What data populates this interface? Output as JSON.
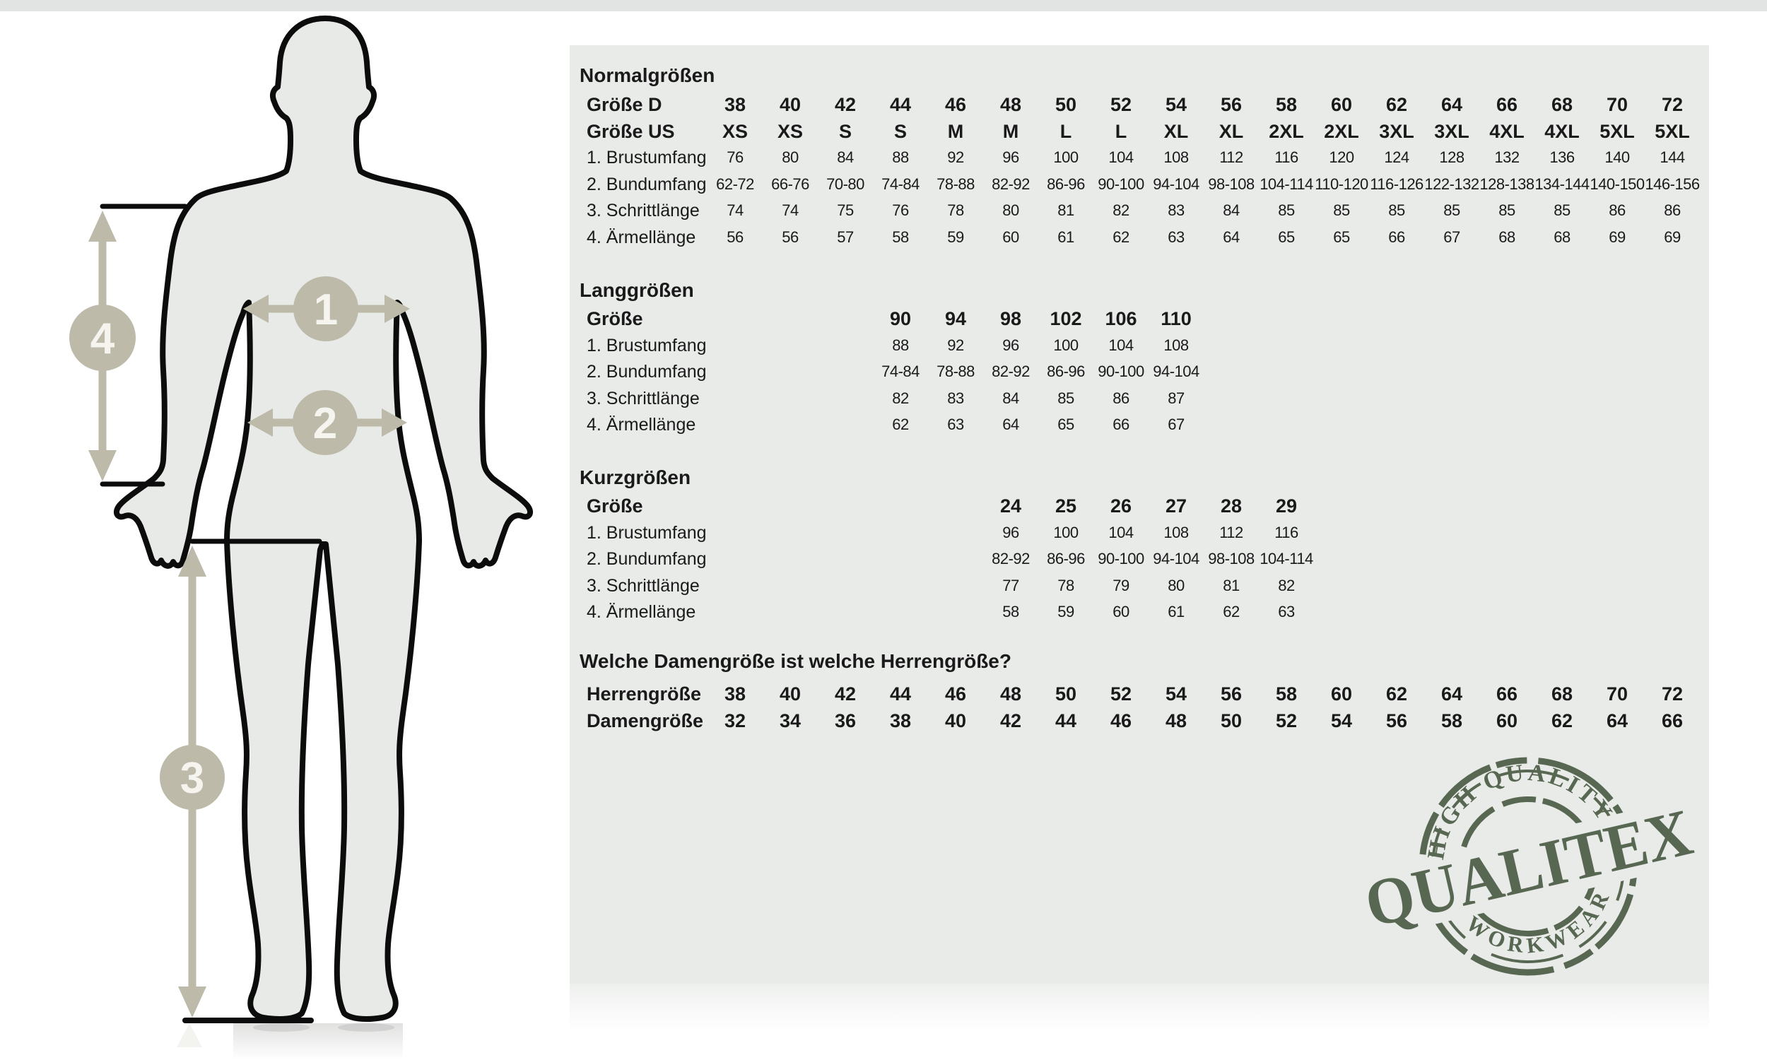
{
  "page": {
    "colors": {
      "panel_bg": "#e9ebe9",
      "body_fill": "#e8eae8",
      "outline_black": "#0c0c0c",
      "marker_beige": "#bdbaa9",
      "marker_number": "#f5f4ee",
      "floor_gray": "#e2e4e3",
      "stamp_green": "#4d5e46",
      "text_color": "#1a1a1a"
    }
  },
  "figure": {
    "markers": [
      {
        "label": "1"
      },
      {
        "label": "2"
      },
      {
        "label": "3"
      },
      {
        "label": "4"
      }
    ]
  },
  "tables": {
    "sections": [
      {
        "title": "Normalgrößen",
        "rows": [
          {
            "label": "Größe D",
            "bold": true,
            "start": 0,
            "values": [
              "38",
              "40",
              "42",
              "44",
              "46",
              "48",
              "50",
              "52",
              "54",
              "56",
              "58",
              "60",
              "62",
              "64",
              "66",
              "68",
              "70",
              "72"
            ]
          },
          {
            "label": "Größe US",
            "bold": true,
            "start": 0,
            "values": [
              "XS",
              "XS",
              "S",
              "S",
              "M",
              "M",
              "L",
              "L",
              "XL",
              "XL",
              "2XL",
              "2XL",
              "3XL",
              "3XL",
              "4XL",
              "4XL",
              "5XL",
              "5XL"
            ]
          },
          {
            "label": "1. Brustumfang",
            "bold": false,
            "start": 0,
            "values": [
              "76",
              "80",
              "84",
              "88",
              "92",
              "96",
              "100",
              "104",
              "108",
              "112",
              "116",
              "120",
              "124",
              "128",
              "132",
              "136",
              "140",
              "144"
            ]
          },
          {
            "label": "2. Bundumfang",
            "bold": false,
            "start": 0,
            "values": [
              "62-72",
              "66-76",
              "70-80",
              "74-84",
              "78-88",
              "82-92",
              "86-96",
              "90-100",
              "94-104",
              "98-108",
              "104-114",
              "110-120",
              "116-126",
              "122-132",
              "128-138",
              "134-144",
              "140-150",
              "146-156"
            ]
          },
          {
            "label": "3. Schrittlänge",
            "bold": false,
            "start": 0,
            "values": [
              "74",
              "74",
              "75",
              "76",
              "78",
              "80",
              "81",
              "82",
              "83",
              "84",
              "85",
              "85",
              "85",
              "85",
              "85",
              "85",
              "86",
              "86"
            ]
          },
          {
            "label": "4. Ärmellänge",
            "bold": false,
            "start": 0,
            "values": [
              "56",
              "56",
              "57",
              "58",
              "59",
              "60",
              "61",
              "62",
              "63",
              "64",
              "65",
              "65",
              "66",
              "67",
              "68",
              "68",
              "69",
              "69"
            ]
          }
        ]
      },
      {
        "title": "Langgrößen",
        "rows": [
          {
            "label": "Größe",
            "bold": true,
            "start": 3,
            "values": [
              "90",
              "94",
              "98",
              "102",
              "106",
              "110"
            ]
          },
          {
            "label": "1. Brustumfang",
            "bold": false,
            "start": 3,
            "values": [
              "88",
              "92",
              "96",
              "100",
              "104",
              "108"
            ]
          },
          {
            "label": "2. Bundumfang",
            "bold": false,
            "start": 3,
            "values": [
              "74-84",
              "78-88",
              "82-92",
              "86-96",
              "90-100",
              "94-104"
            ]
          },
          {
            "label": "3. Schrittlänge",
            "bold": false,
            "start": 3,
            "values": [
              "82",
              "83",
              "84",
              "85",
              "86",
              "87"
            ]
          },
          {
            "label": "4. Ärmellänge",
            "bold": false,
            "start": 3,
            "values": [
              "62",
              "63",
              "64",
              "65",
              "66",
              "67"
            ]
          }
        ]
      },
      {
        "title": "Kurzgrößen",
        "rows": [
          {
            "label": "Größe",
            "bold": true,
            "start": 5,
            "values": [
              "24",
              "25",
              "26",
              "27",
              "28",
              "29"
            ]
          },
          {
            "label": "1. Brustumfang",
            "bold": false,
            "start": 5,
            "values": [
              "96",
              "100",
              "104",
              "108",
              "112",
              "116"
            ]
          },
          {
            "label": "2. Bundumfang",
            "bold": false,
            "start": 5,
            "values": [
              "82-92",
              "86-96",
              "90-100",
              "94-104",
              "98-108",
              "104-114"
            ]
          },
          {
            "label": "3. Schrittlänge",
            "bold": false,
            "start": 5,
            "values": [
              "77",
              "78",
              "79",
              "80",
              "81",
              "82"
            ]
          },
          {
            "label": "4. Ärmellänge",
            "bold": false,
            "start": 5,
            "values": [
              "58",
              "59",
              "60",
              "61",
              "62",
              "63"
            ]
          }
        ]
      },
      {
        "title": "Welche Damengröße ist welche Herrengröße?",
        "rows": [
          {
            "label": "Herrengröße",
            "bold": true,
            "start": 0,
            "values": [
              "38",
              "40",
              "42",
              "44",
              "46",
              "48",
              "50",
              "52",
              "54",
              "56",
              "58",
              "60",
              "62",
              "64",
              "66",
              "68",
              "70",
              "72"
            ]
          },
          {
            "label": "Damengröße",
            "bold": true,
            "start": 0,
            "values": [
              "32",
              "34",
              "36",
              "38",
              "40",
              "42",
              "44",
              "46",
              "48",
              "50",
              "52",
              "54",
              "56",
              "58",
              "60",
              "62",
              "64",
              "66"
            ]
          }
        ]
      }
    ]
  },
  "stamp": {
    "top": "HIGH QUALITY",
    "main": "QUALITEX",
    "bottom": "WORKWEAR"
  }
}
